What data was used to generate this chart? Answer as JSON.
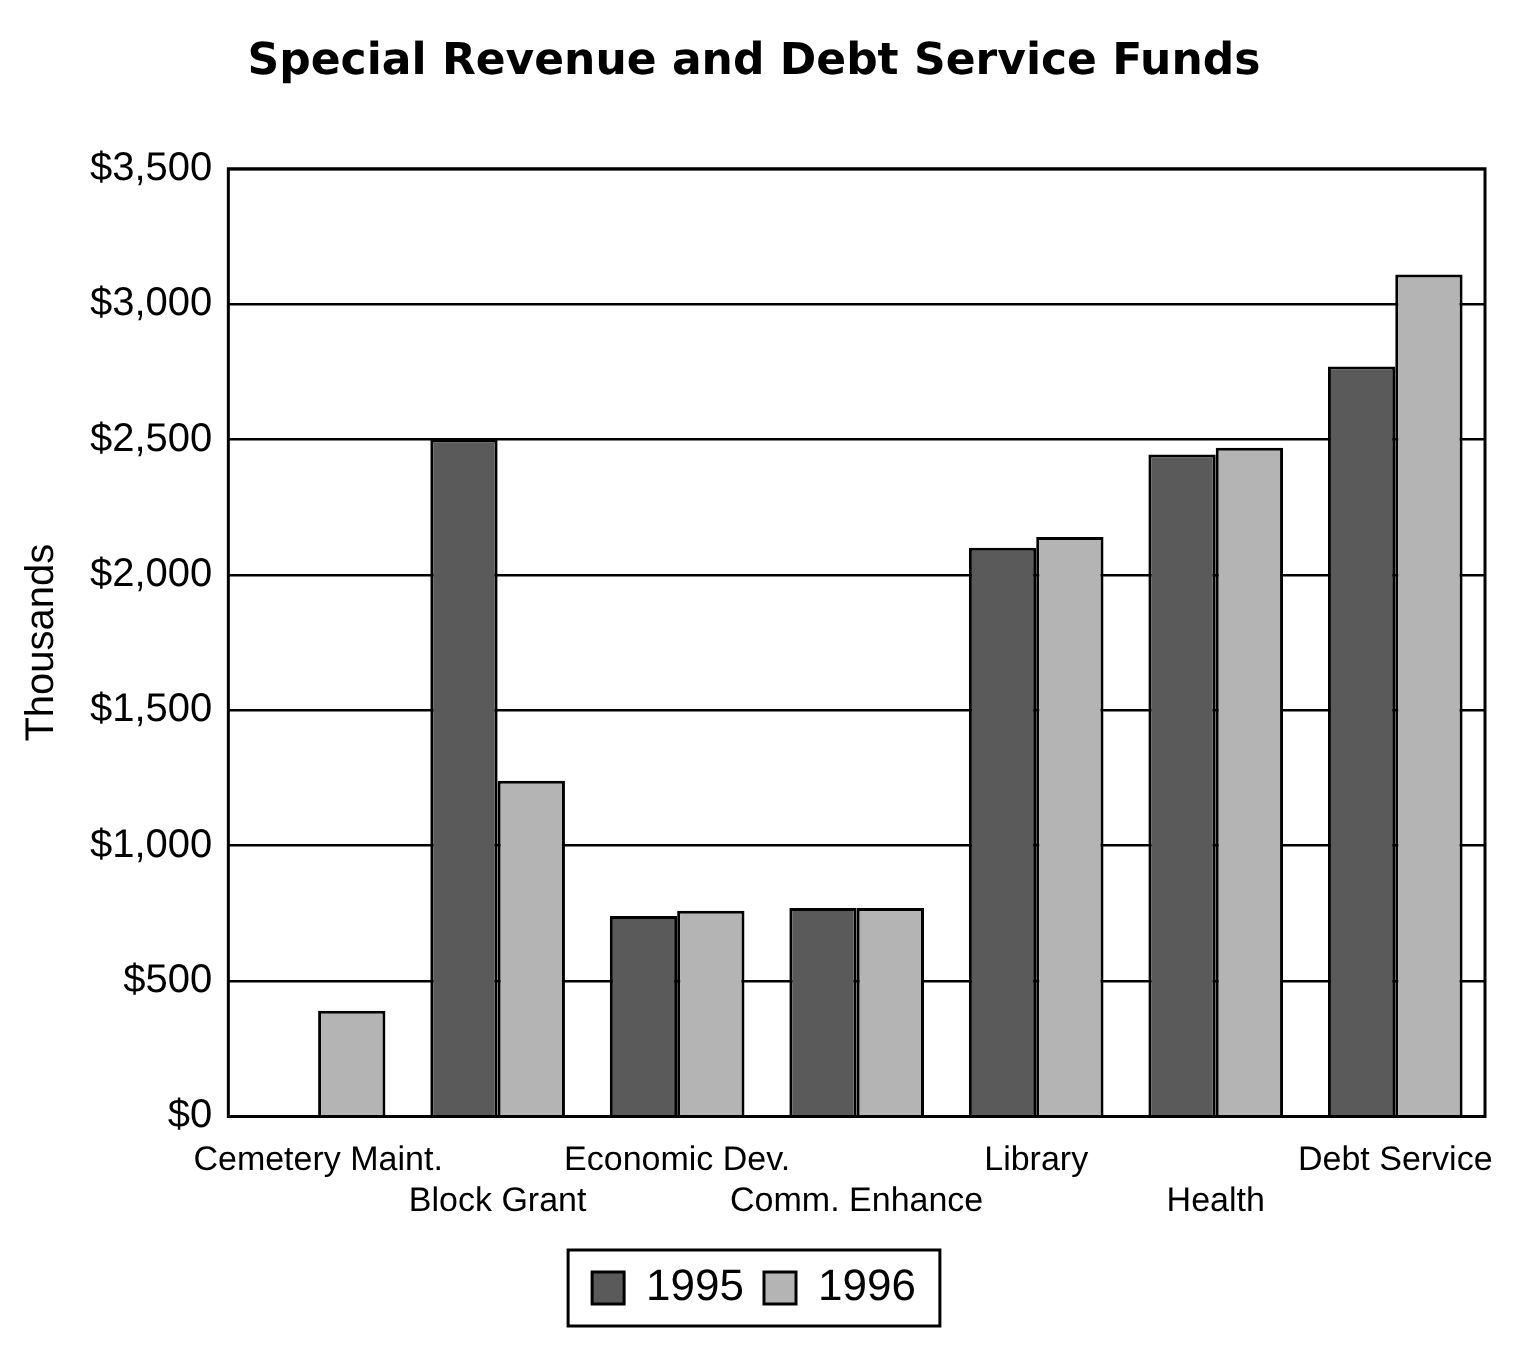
{
  "chart_data": {
    "type": "bar",
    "title": "Special Revenue and Debt Service Funds",
    "ylabel": "Thousands",
    "categories": [
      "Cemetery Maint.",
      "Block Grant",
      "Economic Dev.",
      "Comm. Enhance",
      "Library",
      "Health",
      "Debt Service"
    ],
    "series": [
      {
        "name": "1995",
        "color": "#5a5a5a",
        "values": [
          0,
          2500,
          740,
          770,
          2100,
          2445,
          2770
        ]
      },
      {
        "name": "1996",
        "color": "#b4b4b4",
        "values": [
          390,
          1240,
          760,
          770,
          2140,
          2470,
          3110
        ]
      }
    ],
    "ylim": [
      0,
      3500
    ],
    "yticks": [
      {
        "value": 0,
        "label": "$0"
      },
      {
        "value": 500,
        "label": "$500"
      },
      {
        "value": 1000,
        "label": "$1,000"
      },
      {
        "value": 1500,
        "label": "$1,500"
      },
      {
        "value": 2000,
        "label": "$2,000"
      },
      {
        "value": 2500,
        "label": "$2,500"
      },
      {
        "value": 3000,
        "label": "$3,000"
      },
      {
        "value": 3500,
        "label": "$3,500"
      }
    ],
    "grid": "y",
    "legend": "bottom"
  }
}
